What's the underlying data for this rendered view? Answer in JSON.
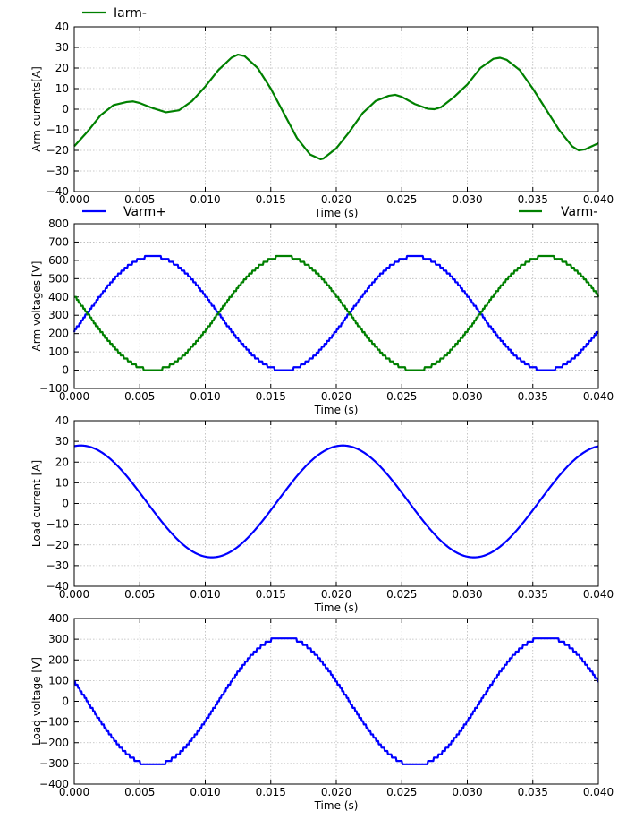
{
  "colors": {
    "blue": "#0000ff",
    "green": "#008000",
    "grid": "#b8b8b8"
  },
  "chart_data": [
    {
      "type": "line",
      "xlabel": "Time (s)",
      "ylabel": "Arm currents[A]",
      "xlim": [
        0,
        0.04
      ],
      "ylim": [
        -40,
        40
      ],
      "xticks": [
        "0.000",
        "0.005",
        "0.010",
        "0.015",
        "0.020",
        "0.025",
        "0.030",
        "0.035",
        "0.040"
      ],
      "yticks": [
        "40",
        "30",
        "20",
        "10",
        "0",
        "−10",
        "−20",
        "−30",
        "−40"
      ],
      "grid": true,
      "legend": [
        "Iarm-"
      ],
      "series": [
        {
          "name": "Iarm-",
          "color": "#008000",
          "x": [
            0.0,
            0.001,
            0.002,
            0.003,
            0.004,
            0.0045,
            0.005,
            0.006,
            0.007,
            0.008,
            0.009,
            0.01,
            0.011,
            0.012,
            0.0125,
            0.013,
            0.014,
            0.015,
            0.016,
            0.017,
            0.018,
            0.0188,
            0.019,
            0.02,
            0.021,
            0.022,
            0.023,
            0.024,
            0.0245,
            0.025,
            0.026,
            0.027,
            0.0275,
            0.028,
            0.029,
            0.03,
            0.031,
            0.032,
            0.0325,
            0.033,
            0.034,
            0.035,
            0.036,
            0.037,
            0.038,
            0.0385,
            0.039,
            0.04
          ],
          "y": [
            -18,
            -11,
            -3,
            2,
            3.5,
            3.8,
            3,
            0.5,
            -1.5,
            -0.5,
            4,
            11,
            19,
            25,
            26.5,
            25.8,
            20,
            10,
            -2,
            -14,
            -22,
            -24.3,
            -24,
            -19,
            -11,
            -2,
            4,
            6.5,
            7,
            6,
            2.5,
            0.2,
            0,
            1,
            6,
            12,
            20,
            24.5,
            25,
            24,
            19,
            10,
            0,
            -10,
            -18,
            -20,
            -19.5,
            -16.5
          ]
        }
      ]
    },
    {
      "type": "line",
      "xlabel": "Time (s)",
      "ylabel": "Arm voltages [V]",
      "xlim": [
        0,
        0.04
      ],
      "ylim": [
        -100,
        800
      ],
      "xticks": [
        "0.000",
        "0.005",
        "0.010",
        "0.015",
        "0.020",
        "0.025",
        "0.030",
        "0.035",
        "0.040"
      ],
      "yticks": [
        "800",
        "700",
        "600",
        "500",
        "400",
        "300",
        "200",
        "100",
        "0",
        "−100"
      ],
      "grid": true,
      "legend": [
        "Varm+",
        "Varm-"
      ],
      "series": [
        {
          "name": "Varm+",
          "color": "#0000ff",
          "waveform": "sine-staircase",
          "offset": 311,
          "amplitude": 311,
          "frequency_hz": 50,
          "peak_time": 0.006,
          "step_v": 16
        },
        {
          "name": "Varm-",
          "color": "#008000",
          "waveform": "sine-staircase",
          "offset": 311,
          "amplitude": 311,
          "frequency_hz": 50,
          "peak_time": 0.016,
          "step_v": 16
        }
      ]
    },
    {
      "type": "line",
      "xlabel": "Time (s)",
      "ylabel": "Load current [A]",
      "xlim": [
        0,
        0.04
      ],
      "ylim": [
        -40,
        40
      ],
      "xticks": [
        "0.000",
        "0.005",
        "0.010",
        "0.015",
        "0.020",
        "0.025",
        "0.030",
        "0.035",
        "0.040"
      ],
      "yticks": [
        "40",
        "30",
        "20",
        "10",
        "0",
        "−10",
        "−20",
        "−30",
        "−40"
      ],
      "grid": true,
      "legend": [],
      "series": [
        {
          "color": "#0000ff",
          "waveform": "sine",
          "offset": 1,
          "amplitude": 27,
          "frequency_hz": 50,
          "peak_time": 0.0005
        }
      ]
    },
    {
      "type": "line",
      "xlabel": "Time (s)",
      "ylabel": "Load voltage [V]",
      "xlim": [
        0,
        0.04
      ],
      "ylim": [
        -400,
        400
      ],
      "xticks": [
        "0.000",
        "0.005",
        "0.010",
        "0.015",
        "0.020",
        "0.025",
        "0.030",
        "0.035",
        "0.040"
      ],
      "yticks": [
        "400",
        "300",
        "200",
        "100",
        "0",
        "−100",
        "−200",
        "−300",
        "−400"
      ],
      "grid": true,
      "legend": [],
      "series": [
        {
          "color": "#0000ff",
          "waveform": "sine-staircase",
          "offset": 0,
          "amplitude": 311,
          "frequency_hz": 50,
          "peak_time": 0.016,
          "step_v": 16
        }
      ]
    }
  ]
}
